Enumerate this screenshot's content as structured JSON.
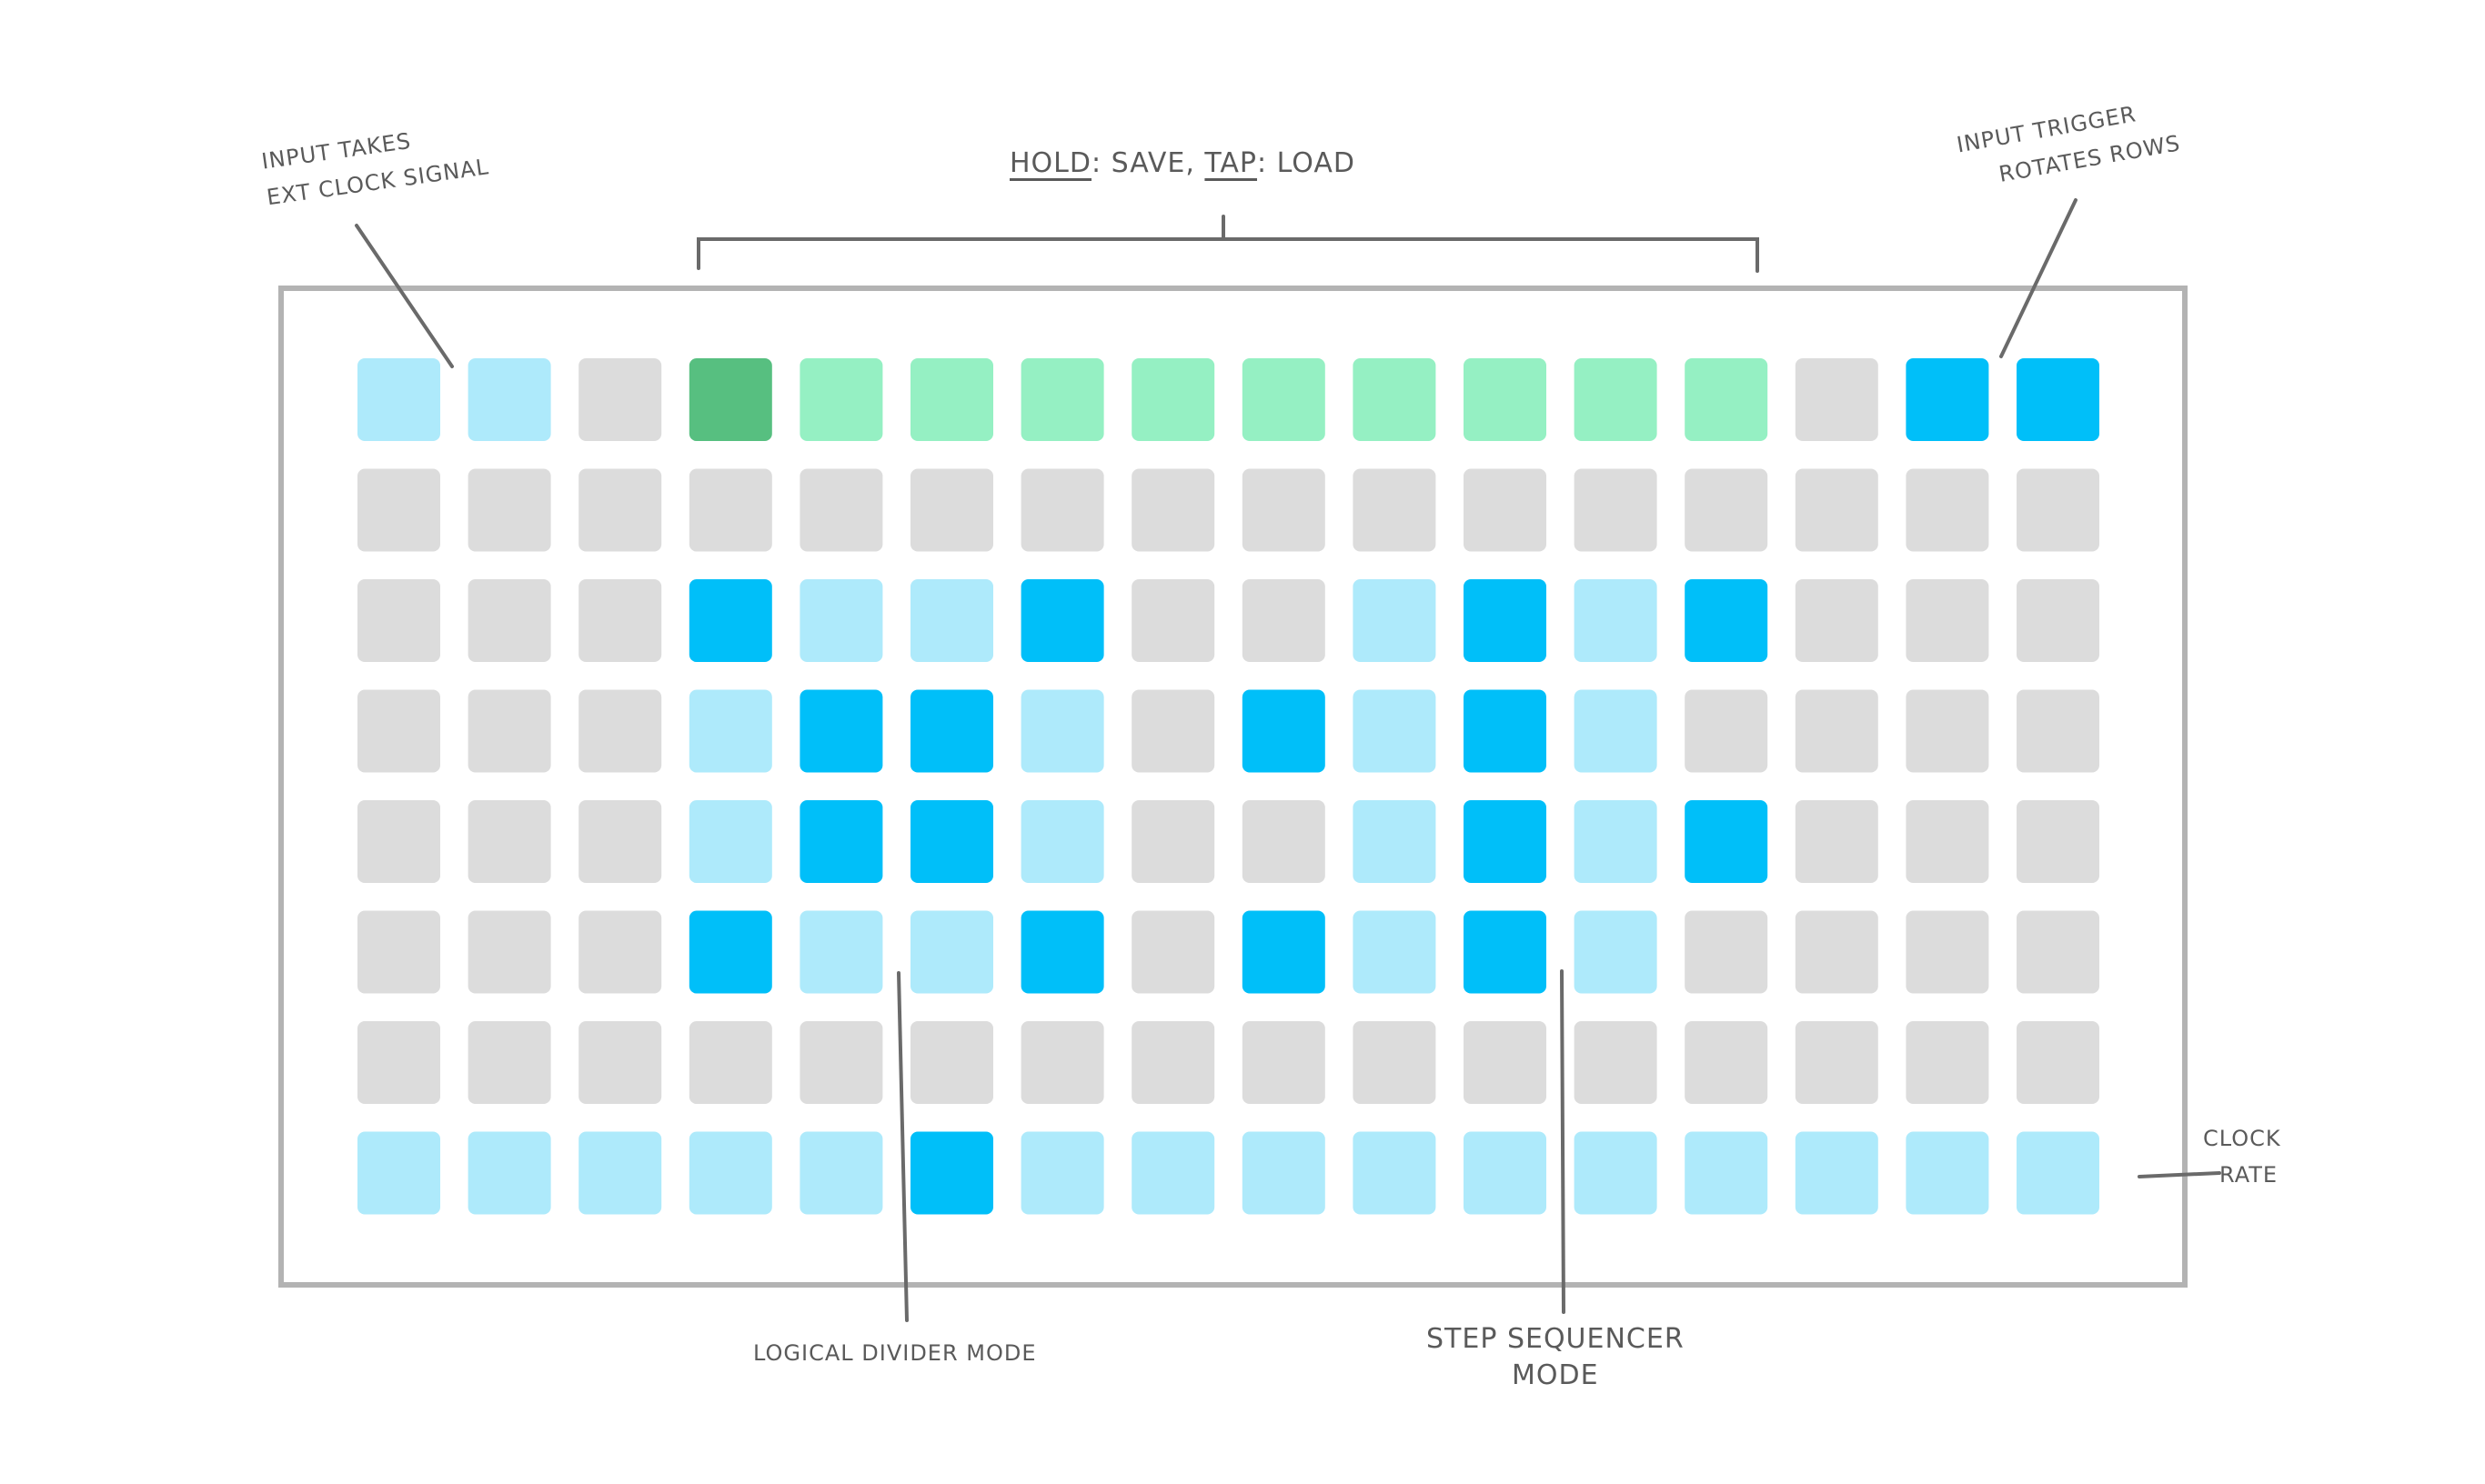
{
  "grid": {
    "rows": [
      [
        "L",
        "L",
        "G",
        "DG",
        "MG",
        "MG",
        "MG",
        "MG",
        "MG",
        "MG",
        "MG",
        "MG",
        "MG",
        "G",
        "B",
        "B"
      ],
      [
        "G",
        "G",
        "G",
        "G",
        "G",
        "G",
        "G",
        "G",
        "G",
        "G",
        "G",
        "G",
        "G",
        "G",
        "G",
        "G"
      ],
      [
        "G",
        "G",
        "G",
        "B",
        "L",
        "L",
        "B",
        "G",
        "G",
        "L",
        "B",
        "L",
        "B",
        "G",
        "G",
        "G"
      ],
      [
        "G",
        "G",
        "G",
        "L",
        "B",
        "B",
        "L",
        "G",
        "B",
        "L",
        "B",
        "L",
        "G",
        "G",
        "G",
        "G"
      ],
      [
        "G",
        "G",
        "G",
        "L",
        "B",
        "B",
        "L",
        "G",
        "G",
        "L",
        "B",
        "L",
        "B",
        "G",
        "G",
        "G"
      ],
      [
        "G",
        "G",
        "G",
        "B",
        "L",
        "L",
        "B",
        "G",
        "B",
        "L",
        "B",
        "L",
        "G",
        "G",
        "G",
        "G"
      ],
      [
        "G",
        "G",
        "G",
        "G",
        "G",
        "G",
        "G",
        "G",
        "G",
        "G",
        "G",
        "G",
        "G",
        "G",
        "G",
        "G"
      ],
      [
        "L",
        "L",
        "L",
        "L",
        "L",
        "B",
        "L",
        "L",
        "L",
        "L",
        "L",
        "L",
        "L",
        "L",
        "L",
        "L"
      ]
    ],
    "colors": {
      "G": "#dcdcdc",
      "L": "#aeeafb",
      "B": "#00bff9",
      "MG": "#95f0c3",
      "DG": "#57bf80"
    },
    "frame_color": "#b3b3b3",
    "line_color": "#6a6a6a"
  },
  "annotations": {
    "input_clock": [
      "INPUT TAKES",
      "EXT CLOCK SIGNAL"
    ],
    "hold_save": {
      "hold": "HOLD",
      "save": ": SAVE, ",
      "tap": "TAP",
      "load": ": LOAD"
    },
    "input_trigger": [
      "INPUT TRIGGER",
      "ROTATES ROWS"
    ],
    "logical_divider": "LOGICAL DIVIDER MODE",
    "step_sequencer": [
      "STEP SEQUENCER",
      "MODE"
    ],
    "clock_rate": [
      "CLOCK",
      "RATE"
    ]
  }
}
